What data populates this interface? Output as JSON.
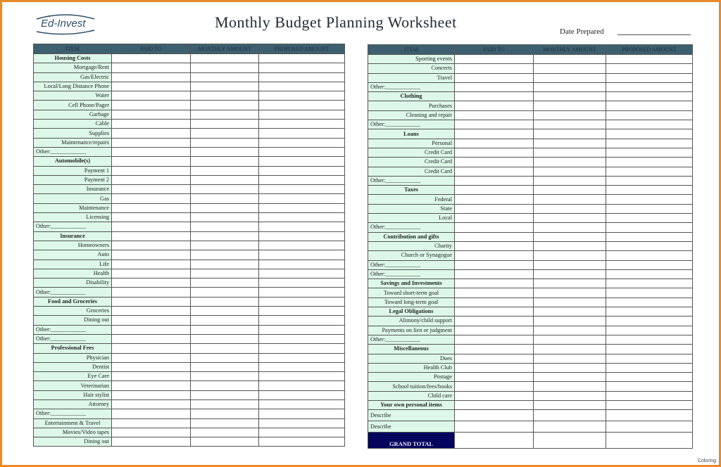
{
  "logo": "Ed-Invest",
  "title": "Monthly Budget Planning Worksheet",
  "date_prepared_label": "Date Prepared",
  "columns": [
    "ITEM",
    "PAID TO",
    "MONTHLY AMOUNT",
    "PROPOSED AMOUNT"
  ],
  "left_rows": [
    [
      "Housing Costs",
      "h"
    ],
    [
      "Mortgage/Rent",
      "i"
    ],
    [
      "Gas/Electric",
      "i"
    ],
    [
      "Local/Long Distance Phone",
      "i"
    ],
    [
      "Water",
      "i"
    ],
    [
      "Cell Phone/Pager",
      "i"
    ],
    [
      "Garbage",
      "i"
    ],
    [
      "Cable",
      "i"
    ],
    [
      "Supplies",
      "i"
    ],
    [
      "Maintenance/repairs",
      "i"
    ],
    [
      "Other:____________",
      "o"
    ],
    [
      "Automobile(s)",
      "h"
    ],
    [
      "Payment 1",
      "i"
    ],
    [
      "Payment 2",
      "i"
    ],
    [
      "Insurance",
      "i"
    ],
    [
      "Gas",
      "i"
    ],
    [
      "Maintenance",
      "i"
    ],
    [
      "Licensing",
      "i"
    ],
    [
      "Other:____________",
      "o"
    ],
    [
      "Insurance",
      "h"
    ],
    [
      "Homeowners",
      "i"
    ],
    [
      "Auto",
      "i"
    ],
    [
      "Life",
      "i"
    ],
    [
      "Health",
      "i"
    ],
    [
      "Disability",
      "i"
    ],
    [
      "Other:____________",
      "o"
    ],
    [
      "Food and Groceries",
      "h"
    ],
    [
      "Groceries",
      "i"
    ],
    [
      "Dining out",
      "i"
    ],
    [
      "Other:____________",
      "o"
    ],
    [
      "Other:____________",
      "o"
    ],
    [
      "Professional Fees",
      "h"
    ],
    [
      "Physician",
      "i"
    ],
    [
      "Dentist",
      "i"
    ],
    [
      "Eye Care",
      "i"
    ],
    [
      "Veterinarian",
      "i"
    ],
    [
      "Hair stylist",
      "i"
    ],
    [
      "Attorney",
      "i"
    ],
    [
      "Other:____________",
      "o"
    ],
    [
      "Entertainment & Travel",
      "c"
    ],
    [
      "Movies/Video tapes",
      "i"
    ],
    [
      "Dining out",
      "i"
    ]
  ],
  "right_rows": [
    [
      "Sporting events",
      "i"
    ],
    [
      "Concerts",
      "i"
    ],
    [
      "Travel",
      "i"
    ],
    [
      "Other:____________",
      "o"
    ],
    [
      "Clothing",
      "h"
    ],
    [
      "Purchases",
      "i"
    ],
    [
      "Cleaning and repair",
      "i"
    ],
    [
      "Other:____________",
      "o"
    ],
    [
      "Loans",
      "h"
    ],
    [
      "Personal",
      "i"
    ],
    [
      "Credit Card",
      "i"
    ],
    [
      "Credit Card",
      "i"
    ],
    [
      "Credit Card",
      "i"
    ],
    [
      "Other:____________",
      "o"
    ],
    [
      "Taxes",
      "h"
    ],
    [
      "Federal",
      "i"
    ],
    [
      "State",
      "i"
    ],
    [
      "Local",
      "i"
    ],
    [
      "Other:____________",
      "o"
    ],
    [
      "Contribution and gifts",
      "h"
    ],
    [
      "Charity",
      "i"
    ],
    [
      "Church or Synagogue",
      "i"
    ],
    [
      "Other:____________",
      "o"
    ],
    [
      "Other:____________",
      "o"
    ],
    [
      "Savings and Investments",
      "h"
    ],
    [
      "Toward short-term goal",
      "c"
    ],
    [
      "Toward long-term goal",
      "c"
    ],
    [
      "Legal Obligations",
      "h"
    ],
    [
      "Alimony/child support",
      "i"
    ],
    [
      "Payments on lien or judgment",
      "i"
    ],
    [
      "Other:____________",
      "o"
    ],
    [
      "Miscellaneous",
      "h"
    ],
    [
      "Dues",
      "i"
    ],
    [
      "Health Club",
      "i"
    ],
    [
      "Postage",
      "i"
    ],
    [
      "School tuition/fees/books",
      "i"
    ],
    [
      "Child care",
      "i"
    ],
    [
      "Your own personal items",
      "h"
    ],
    [
      "Describe",
      "d"
    ],
    [
      "Describe",
      "d"
    ],
    [
      "GRAND TOTAL",
      "g"
    ]
  ],
  "footer": "Coloring"
}
